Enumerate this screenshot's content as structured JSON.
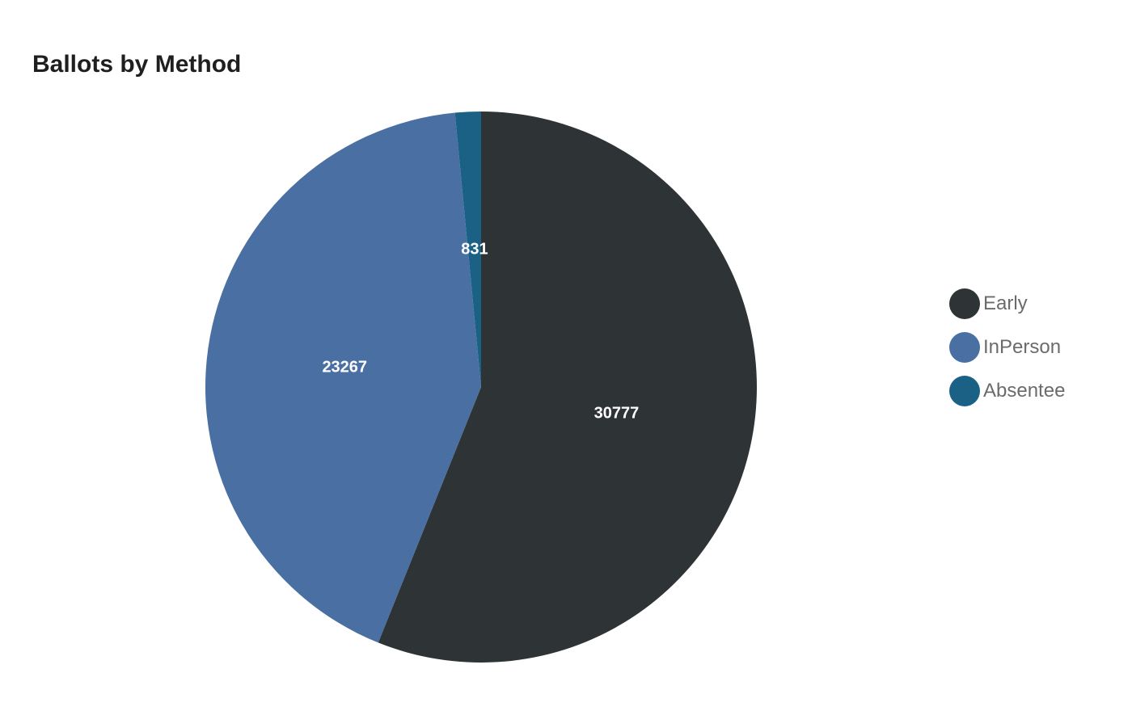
{
  "chart_data": {
    "type": "pie",
    "title": "Ballots by Method",
    "categories": [
      "Early",
      "InPerson",
      "Absentee"
    ],
    "values": [
      30777,
      23267,
      831
    ],
    "colors": [
      "#2e3436",
      "#4a6fa2",
      "#1a6185"
    ],
    "start_angle": "12 o'clock",
    "direction": "clockwise",
    "legend_position": "right"
  }
}
